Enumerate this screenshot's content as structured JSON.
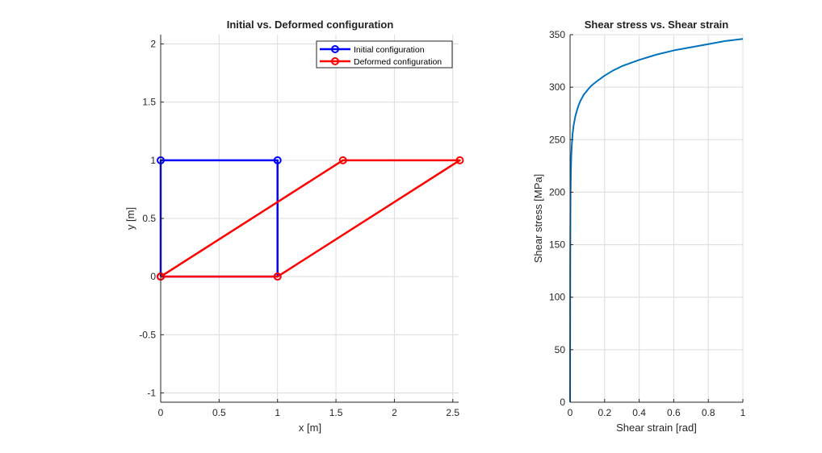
{
  "chart_data": [
    {
      "type": "line",
      "title": "Initial vs. Deformed configuration",
      "xlabel": "x [m]",
      "ylabel": "y [m]",
      "xlim": [
        0,
        2.55
      ],
      "ylim": [
        -1.08,
        2.08
      ],
      "xticks": [
        0,
        0.5,
        1,
        1.5,
        2,
        2.5
      ],
      "xtick_labels": [
        "0",
        "0.5",
        "1",
        "1.5",
        "2",
        "2.5"
      ],
      "yticks": [
        -1,
        -0.5,
        0,
        0.5,
        1,
        1.5,
        2
      ],
      "ytick_labels": [
        "-1",
        "-0.5",
        "0",
        "0.5",
        "1",
        "1.5",
        "2"
      ],
      "grid": true,
      "legend_position": "top-right",
      "series": [
        {
          "name": "Initial configuration",
          "color": "#0000ff",
          "x": [
            0,
            1,
            1,
            0,
            0
          ],
          "y": [
            0,
            0,
            1,
            1,
            0
          ]
        },
        {
          "name": "Deformed configuration",
          "color": "#ff0000",
          "x": [
            0,
            1,
            2.56,
            1.56,
            0
          ],
          "y": [
            0,
            0,
            1,
            1,
            0
          ]
        }
      ]
    },
    {
      "type": "line",
      "title": "Shear stress vs. Shear strain",
      "xlabel": "Shear strain [rad]",
      "ylabel": "Shear stress [MPa]",
      "xlim": [
        0,
        1
      ],
      "ylim": [
        0,
        350
      ],
      "xticks": [
        0,
        0.2,
        0.4,
        0.6,
        0.8,
        1
      ],
      "xtick_labels": [
        "0",
        "0.2",
        "0.4",
        "0.6",
        "0.8",
        "1"
      ],
      "yticks": [
        0,
        50,
        100,
        150,
        200,
        250,
        300,
        350
      ],
      "ytick_labels": [
        "0",
        "50",
        "100",
        "150",
        "200",
        "250",
        "300",
        "350"
      ],
      "grid": true,
      "series": [
        {
          "color": "#0072bd",
          "x": [
            0,
            0.001,
            0.002,
            0.003,
            0.005,
            0.007,
            0.01,
            0.015,
            0.02,
            0.03,
            0.04,
            0.05,
            0.06,
            0.08,
            0.1,
            0.12,
            0.15,
            0.2,
            0.25,
            0.3,
            0.35,
            0.4,
            0.5,
            0.6,
            0.7,
            0.8,
            0.9,
            1.0
          ],
          "y": [
            0,
            130,
            175,
            200,
            222,
            234,
            245,
            256,
            263,
            272,
            278,
            283,
            287,
            293,
            297,
            301,
            305,
            311,
            316,
            320,
            323,
            326,
            331,
            335,
            338,
            341,
            344,
            346
          ]
        }
      ]
    }
  ]
}
